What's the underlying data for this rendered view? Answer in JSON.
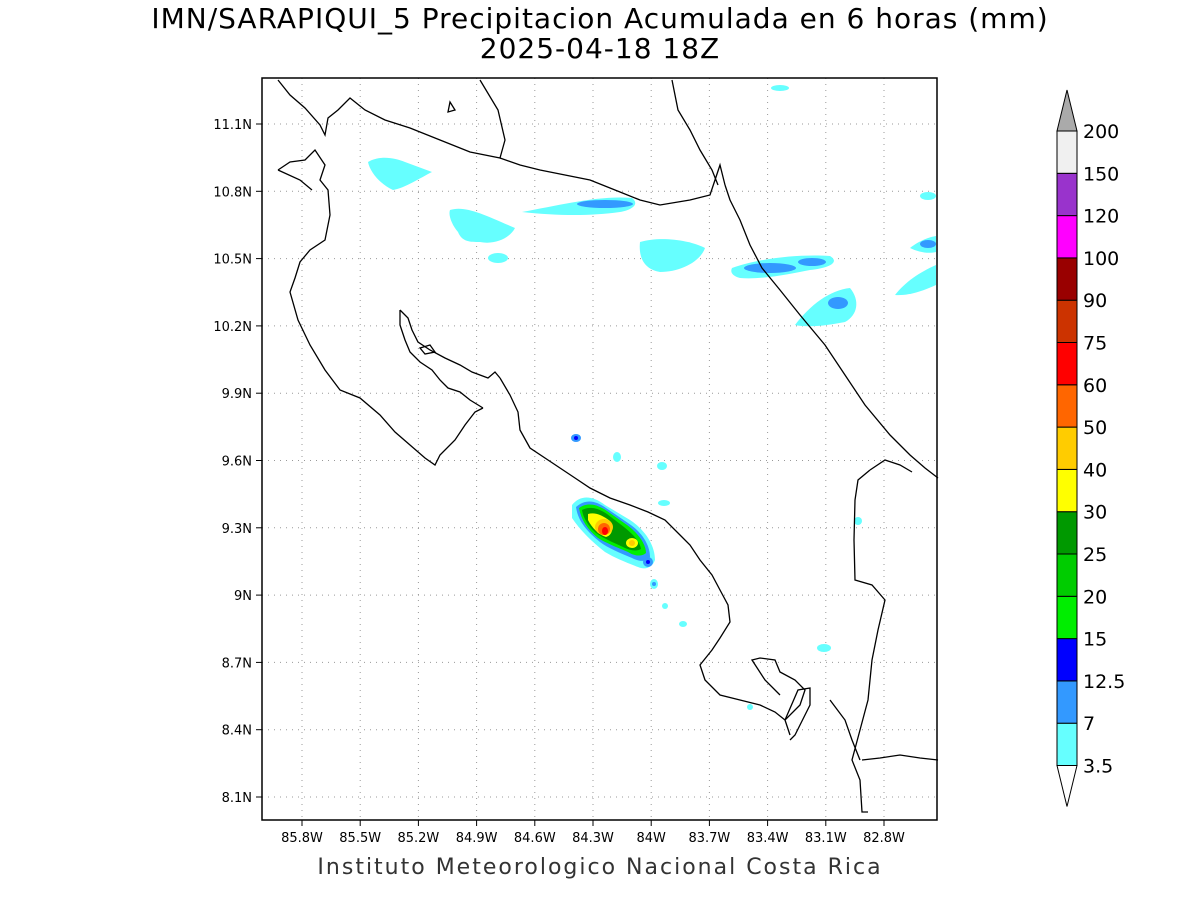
{
  "title": {
    "line1": "IMN/SARAPIQUI_5 Precipitacion Acumulada en 6 horas (mm)",
    "line2": "2025-04-18 18Z"
  },
  "footer": "Instituto Meteorologico Nacional Costa Rica",
  "axes": {
    "lat_ticks": [
      "11.1N",
      "10.8N",
      "10.5N",
      "10.2N",
      "9.9N",
      "9.6N",
      "9.3N",
      "9N",
      "8.7N",
      "8.4N",
      "8.1N"
    ],
    "lon_ticks": [
      "85.8W",
      "85.5W",
      "85.2W",
      "84.9W",
      "84.6W",
      "84.3W",
      "84W",
      "83.7W",
      "83.4W",
      "83.1W",
      "82.8W"
    ],
    "lat_range": [
      8.0,
      11.3
    ],
    "lon_range": [
      -86.0,
      -82.65
    ],
    "grid": "dotted"
  },
  "colorbar": {
    "levels": [
      "3.5",
      "7",
      "12.5",
      "15",
      "20",
      "25",
      "30",
      "40",
      "50",
      "60",
      "75",
      "90",
      "100",
      "120",
      "150",
      "200"
    ],
    "colors": [
      "#66ffff",
      "#3399ff",
      "#0000ff",
      "#00ee00",
      "#00cc00",
      "#009900",
      "#ffff00",
      "#ffcc00",
      "#ff6600",
      "#ff0000",
      "#cc3300",
      "#990000",
      "#ff00ff",
      "#9933cc",
      "#f0f0f0"
    ],
    "extend": "both"
  },
  "chart_data": {
    "type": "heatmap",
    "variable": "Precipitacion Acumulada en 6 horas (mm)",
    "max_cell": {
      "lat": 9.27,
      "lon": -84.23,
      "value_range": "60-75"
    },
    "notable_areas": [
      {
        "lat": 9.3,
        "lon": -84.2,
        "max_class": "60-75"
      },
      {
        "lat": 9.24,
        "lon": -84.08,
        "max_class": "40-50"
      },
      {
        "lat": 9.7,
        "lon": -84.35,
        "max_class": "12.5-15"
      },
      {
        "lat": 10.74,
        "lon": -84.2,
        "max_class": "7-12.5"
      },
      {
        "lat": 10.48,
        "lon": -83.3,
        "max_class": "7-12.5"
      },
      {
        "lat": 10.3,
        "lon": -83.05,
        "max_class": "7-12.5"
      }
    ]
  }
}
